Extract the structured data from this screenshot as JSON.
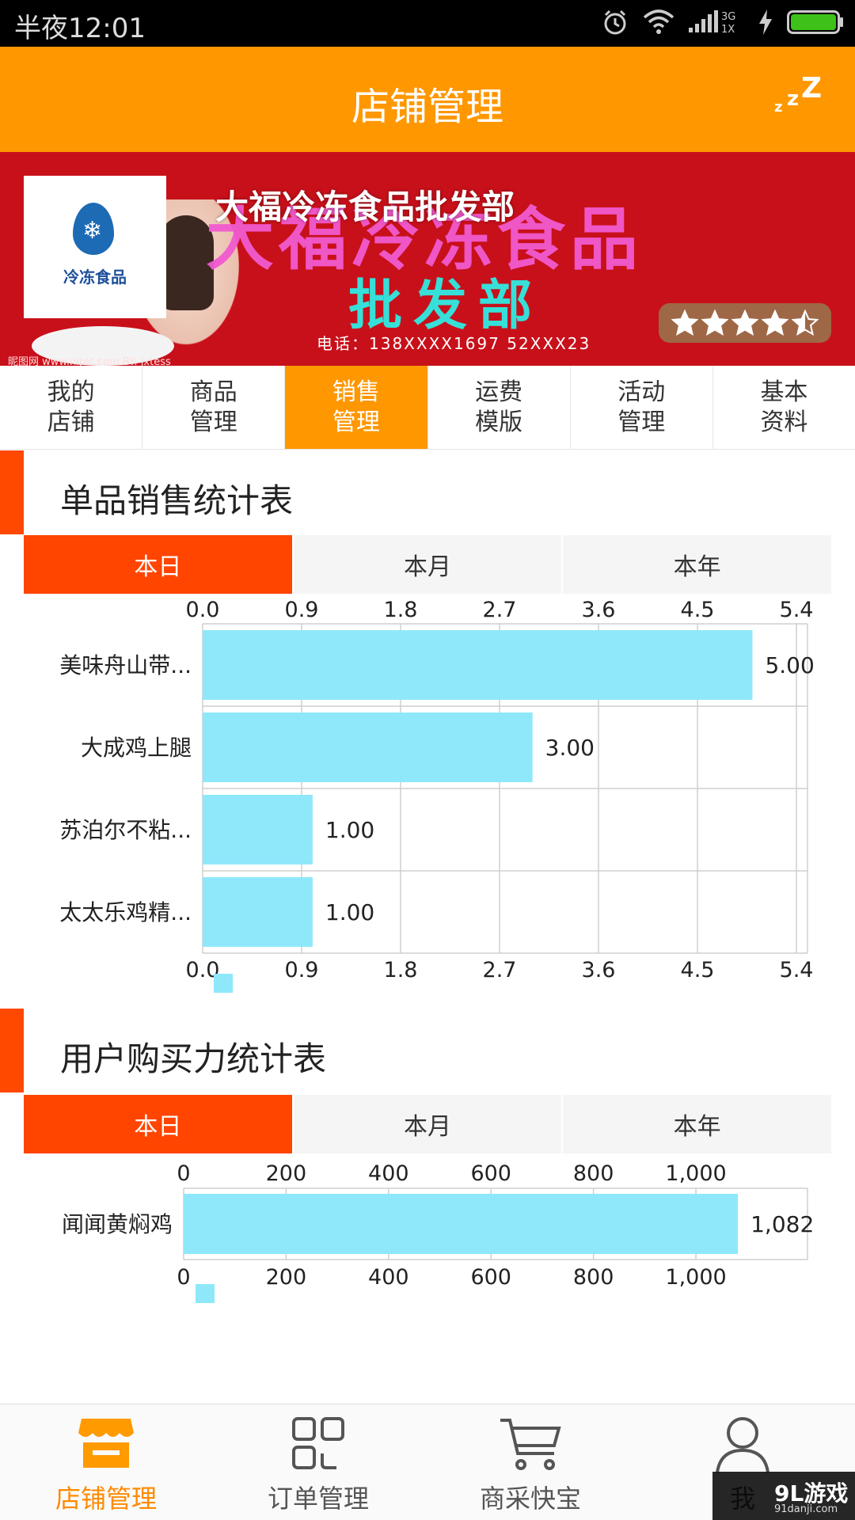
{
  "status_bar": {
    "time": "半夜12:01",
    "icons": [
      "alarm-icon",
      "wifi-icon",
      "signal-icon",
      "charging-icon",
      "battery-icon"
    ],
    "network": "3G 1X"
  },
  "header": {
    "title": "店铺管理",
    "action_icon": "sleep-zzz-icon"
  },
  "banner": {
    "shop_name": "大福冷冻食品批发部",
    "logo_text": "冷冻食品",
    "image_text_line1": "大福冷冻食品",
    "image_text_line2": "批发部",
    "phone_text": "电话：138XXXX1697  52XXX23",
    "site_text": "昵图网 www.nipic.com  BY: jxtess",
    "rating": 4.5,
    "rating_max": 5
  },
  "tabs": [
    {
      "label": "我的\n店铺",
      "active": false
    },
    {
      "label": "商品\n管理",
      "active": false
    },
    {
      "label": "销售\n管理",
      "active": true
    },
    {
      "label": "运费\n模版",
      "active": false
    },
    {
      "label": "活动\n管理",
      "active": false
    },
    {
      "label": "基本\n资料",
      "active": false
    }
  ],
  "sales_section": {
    "title": "单品销售统计表",
    "periods": [
      {
        "label": "本日",
        "active": true
      },
      {
        "label": "本月",
        "active": false
      },
      {
        "label": "本年",
        "active": false
      }
    ]
  },
  "buying_section": {
    "title": "用户购买力统计表",
    "periods": [
      {
        "label": "本日",
        "active": true
      },
      {
        "label": "本月",
        "active": false
      },
      {
        "label": "本年",
        "active": false
      }
    ]
  },
  "chart_data": [
    {
      "type": "bar",
      "orientation": "horizontal",
      "categories": [
        "美味舟山带...",
        "大成鸡上腿",
        "苏泊尔不粘...",
        "太太乐鸡精..."
      ],
      "values": [
        5.0,
        3.0,
        1.0,
        1.0
      ],
      "value_labels": [
        "5.00",
        "3.00",
        "1.00",
        "1.00"
      ],
      "xlim": [
        0,
        5.4
      ],
      "ticks": [
        "0.0",
        "0.9",
        "1.8",
        "2.7",
        "3.6",
        "4.5",
        "5.4"
      ],
      "tick_values": [
        0,
        0.9,
        1.8,
        2.7,
        3.6,
        4.5,
        5.4
      ],
      "color": "#8ee8fa",
      "grid": true,
      "axis_labels_top_and_bottom": true
    },
    {
      "type": "bar",
      "orientation": "horizontal",
      "categories": [
        "闻闻黄焖鸡"
      ],
      "values": [
        1082
      ],
      "value_labels": [
        "1,082"
      ],
      "xlim": [
        0,
        1190
      ],
      "ticks": [
        "0",
        "200",
        "400",
        "600",
        "800",
        "1,000"
      ],
      "tick_values": [
        0,
        200,
        400,
        600,
        800,
        1000
      ],
      "color": "#8ee8fa",
      "grid": true,
      "axis_labels_top_and_bottom": true
    }
  ],
  "bottom_nav": [
    {
      "label": "店铺管理",
      "icon": "store-icon",
      "active": true
    },
    {
      "label": "订单管理",
      "icon": "grid-icon",
      "active": false
    },
    {
      "label": "商采快宝",
      "icon": "cart-icon",
      "active": false
    },
    {
      "label": "我",
      "icon": "user-icon",
      "active": false
    }
  ],
  "watermark": {
    "text": "9L游戏",
    "sub": "91danji.com"
  },
  "colors": {
    "status_bar": "#000000",
    "header": "#ff9700",
    "accent": "#ff4500",
    "bar": "#8ee8fa",
    "nav_active": "#ff8a00"
  }
}
